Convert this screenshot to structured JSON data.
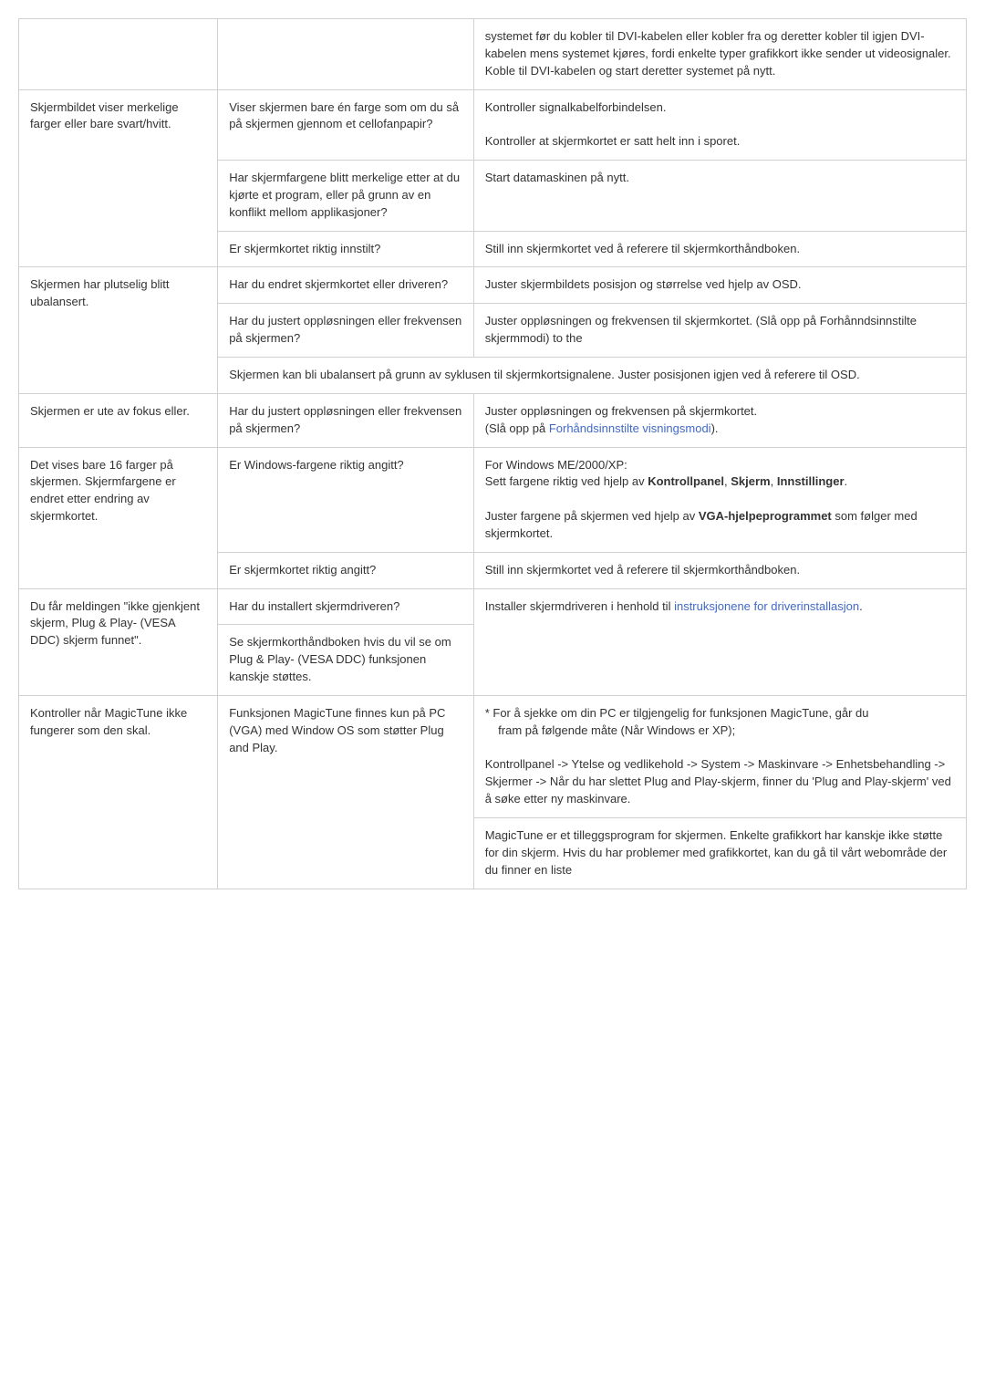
{
  "rows": {
    "r0": {
      "c3": "systemet før du kobler til DVI-kabelen eller kobler fra og deretter kobler til igjen DVI-kabelen mens systemet kjøres, fordi enkelte typer grafikkort ikke sender ut videosignaler. Koble til DVI-kabelen og start deretter systemet på nytt."
    },
    "r1": {
      "c1": "Skjermbildet viser merkelige farger eller bare svart/hvitt.",
      "c2": "Viser skjermen bare én farge som om du så på skjermen gjennom et cellofanpapir?",
      "c3a": "Kontroller signalkabelforbindelsen.",
      "c3b": "Kontroller at skjermkortet er satt helt inn i sporet."
    },
    "r2": {
      "c2": "Har skjermfargene blitt merkelige etter at du kjørte et program, eller på grunn av en konflikt mellom applikasjoner?",
      "c3": "Start datamaskinen på nytt."
    },
    "r3": {
      "c2": "Er skjermkortet riktig innstilt?",
      "c3": "Still inn skjermkortet ved å referere til skjermkorthåndboken."
    },
    "r4": {
      "c1": "Skjermen har plutselig blitt ubalansert.",
      "c2": "Har du endret skjermkortet eller driveren?",
      "c3": "Juster skjermbildets posisjon og størrelse ved hjelp av OSD."
    },
    "r5": {
      "c2": "Har du justert oppløsningen eller frekvensen på skjermen?",
      "c3": "Juster oppløsningen og frekvensen til skjermkortet. (Slå opp på Forhånndsinnstilte skjermmodi) to the"
    },
    "r6": {
      "c": "Skjermen kan bli ubalansert på grunn av syklusen til skjermkortsignalene. Juster posisjonen igjen ved å referere til OSD."
    },
    "r7": {
      "c1": "Skjermen er ute av fokus eller.",
      "c2": "Har du justert oppløsningen eller frekvensen på skjermen?",
      "c3a": "Juster oppløsningen og frekvensen på skjermkortet.",
      "c3b_pre": "(Slå opp på ",
      "c3b_link": "Forhåndsinnstilte visningsmodi",
      "c3b_post": ")."
    },
    "r8": {
      "c1": "Det vises bare 16 farger på skjermen. Skjermfargene er endret etter endring av skjermkortet.",
      "c2": "Er Windows-fargene riktig angitt?",
      "c3a": "For Windows ME/2000/XP:",
      "c3b": "Sett fargene riktig ved hjelp av ",
      "c3c_b1": "Kontrollpanel",
      "c3c_s1": ", ",
      "c3c_b2": "Skjerm",
      "c3c_s2": ", ",
      "c3c_b3": "Innstillinger",
      "c3c_s3": ".",
      "c3d": "Juster fargene på skjermen ved hjelp av ",
      "c3e_b": "VGA-hjelpeprogrammet",
      "c3e_s": " som følger med skjermkortet."
    },
    "r9": {
      "c2": "Er skjermkortet riktig angitt?",
      "c3": "Still inn skjermkortet ved å referere til skjermkorthåndboken."
    },
    "r10": {
      "c1": "Du får meldingen \"ikke gjenkjent skjerm, Plug & Play- (VESA DDC) skjerm funnet\".",
      "c2a": "Har du installert skjermdriveren?",
      "c2b": "Se skjermkorthåndboken hvis du vil se om Plug & Play- (VESA DDC) funksjonen kanskje støttes.",
      "c3a": "Installer skjermdriveren i henhold til ",
      "c3b_link": "instruksjonene for driverinstallasjon",
      "c3b_post": "."
    },
    "r11": {
      "c1": "Kontroller når MagicTune ikke fungerer som den skal.",
      "c2": "Funksjonen MagicTune finnes kun på PC (VGA) med Window OS som støtter Plug and Play.",
      "c3a": "* For å sjekke om din PC er tilgjengelig for funksjonen MagicTune, går du",
      "c3a2": "    fram på følgende måte (Når Windows er XP);",
      "c3b": "Kontrollpanel -> Ytelse og vedlikehold -> System -> Maskinvare -> Enhetsbehandling -> Skjermer -> Når du har slettet Plug and Play-skjerm, finner du 'Plug and Play-skjerm' ved å søke etter ny maskinvare.",
      "c3c": "MagicTune er et tilleggsprogram for skjermen. Enkelte grafikkort har kanskje ikke støtte for din skjerm. Hvis du har problemer med grafikkortet, kan du gå til vårt webområde der du finner en liste"
    }
  }
}
